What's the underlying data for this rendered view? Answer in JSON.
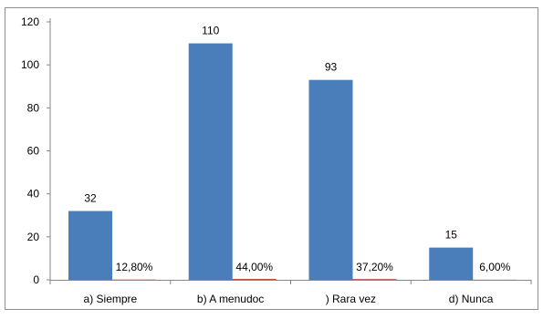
{
  "chart_data": {
    "type": "bar",
    "categories": [
      "a) Siempre",
      "b) A menudoc",
      ") Rara vez",
      "d) Nunca"
    ],
    "series": [
      {
        "values": [
          32,
          110,
          93,
          15
        ],
        "labels": [
          "32",
          "110",
          "93",
          "15"
        ]
      },
      {
        "values": [
          0.128,
          0.44,
          0.372,
          0.06
        ],
        "labels": [
          "12,80%",
          "44,00%",
          "37,20%",
          "6,00%"
        ]
      }
    ],
    "ylim": [
      0,
      120
    ],
    "yticks": [
      0,
      20,
      40,
      60,
      80,
      100,
      120
    ],
    "grid": false,
    "legend": "none",
    "colors": {
      "bar": "#4a7ebb",
      "bar2": "#c0504d",
      "axis": "#868686",
      "border": "#8e8e8e",
      "text": "#000000"
    }
  }
}
